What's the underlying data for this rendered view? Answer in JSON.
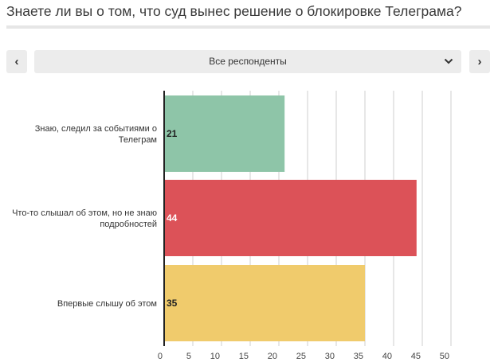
{
  "question": {
    "title": "Знаете ли вы о том, что суд вынес решение о блокировке Телеграма?"
  },
  "navigation": {
    "prev_icon": "chevron-left-icon",
    "next_icon": "chevron-right-icon",
    "prev_glyph": "‹",
    "next_glyph": "›"
  },
  "filter": {
    "selected": "Все респонденты",
    "icon": "chevron-down-icon"
  },
  "chart_data": {
    "type": "bar",
    "orientation": "horizontal",
    "categories": [
      [
        "Знаю, следил за событиями о",
        "Телеграм"
      ],
      [
        "Что-то слышал об этом, но не знаю",
        "подробностей"
      ],
      [
        "Впервые слышу об этом"
      ]
    ],
    "values": [
      21,
      44,
      35
    ],
    "colors": [
      "#8ec5a8",
      "#dc5258",
      "#f0cb6c"
    ],
    "value_label_colors": [
      "#222222",
      "#ffffff",
      "#222222"
    ],
    "xlim": [
      0,
      50
    ],
    "xticks": [
      0,
      5,
      10,
      15,
      20,
      25,
      30,
      35,
      40,
      45,
      50
    ],
    "grid": true
  }
}
